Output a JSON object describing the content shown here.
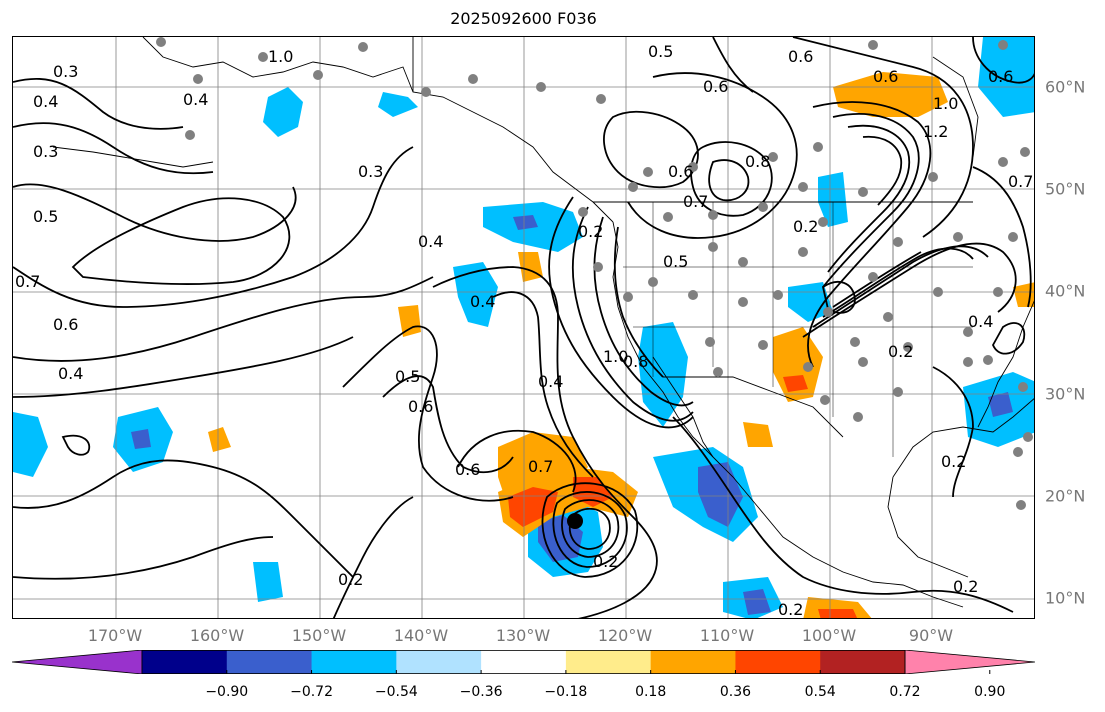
{
  "title": "2025092600 F036",
  "axes": {
    "lon_labels": [
      "170°W",
      "160°W",
      "150°W",
      "140°W",
      "130°W",
      "120°W",
      "110°W",
      "100°W",
      "90°W"
    ],
    "lat_labels": [
      "60°N",
      "50°N",
      "40°N",
      "30°N",
      "20°N",
      "10°N"
    ]
  },
  "contour_labels": [
    "1.0",
    "0.3",
    "0.4",
    "0.4",
    "0.3",
    "0.5",
    "0.7",
    "0.6",
    "0.4",
    "0.3",
    "0.4",
    "0.5",
    "0.6",
    "0.6",
    "0.7",
    "0.4",
    "0.2",
    "1.0",
    "0.8",
    "0.4",
    "0.2",
    "0.2",
    "0.5",
    "0.6",
    "0.6",
    "0.6",
    "0.7",
    "0.5",
    "0.8",
    "0.6",
    "1.0",
    "1.2",
    "0.6",
    "0.7",
    "0.2",
    "0.4",
    "0.2",
    "0.2",
    "0.2",
    "0.2"
  ],
  "colorbar": {
    "tick_labels": [
      "−0.90",
      "−0.72",
      "−0.54",
      "−0.36",
      "−0.18",
      "0.18",
      "0.36",
      "0.54",
      "0.72",
      "0.90"
    ],
    "colors": [
      "#9932cc",
      "#00008b",
      "#3a5fcd",
      "#00bfff",
      "#b0e2ff",
      "#ffffff",
      "#ffec8b",
      "#ffa500",
      "#ff4500",
      "#b22222",
      "#ff82ab"
    ]
  },
  "colors": {
    "land_outline": "#000000",
    "grid": "#808080",
    "station_marker": "#808080",
    "cyclone_center": "#000000"
  }
}
